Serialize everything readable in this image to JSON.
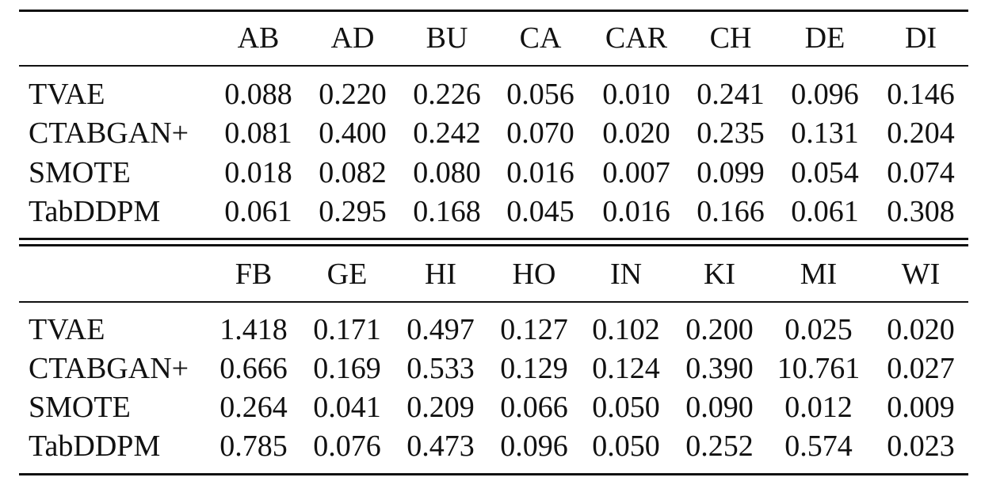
{
  "blocks": [
    {
      "columns": [
        "AB",
        "AD",
        "BU",
        "CA",
        "CAR",
        "CH",
        "DE",
        "DI"
      ],
      "rows": [
        {
          "label": "TVAE",
          "values": [
            "0.088",
            "0.220",
            "0.226",
            "0.056",
            "0.010",
            "0.241",
            "0.096",
            "0.146"
          ]
        },
        {
          "label": "CTABGAN+",
          "values": [
            "0.081",
            "0.400",
            "0.242",
            "0.070",
            "0.020",
            "0.235",
            "0.131",
            "0.204"
          ]
        },
        {
          "label": "SMOTE",
          "values": [
            "0.018",
            "0.082",
            "0.080",
            "0.016",
            "0.007",
            "0.099",
            "0.054",
            "0.074"
          ]
        },
        {
          "label": "TabDDPM",
          "values": [
            "0.061",
            "0.295",
            "0.168",
            "0.045",
            "0.016",
            "0.166",
            "0.061",
            "0.308"
          ]
        }
      ]
    },
    {
      "columns": [
        "FB",
        "GE",
        "HI",
        "HO",
        "IN",
        "KI",
        "MI",
        "WI"
      ],
      "rows": [
        {
          "label": "TVAE",
          "values": [
            "1.418",
            "0.171",
            "0.497",
            "0.127",
            "0.102",
            "0.200",
            "0.025",
            "0.020"
          ]
        },
        {
          "label": "CTABGAN+",
          "values": [
            "0.666",
            "0.169",
            "0.533",
            "0.129",
            "0.124",
            "0.390",
            "10.761",
            "0.027"
          ]
        },
        {
          "label": "SMOTE",
          "values": [
            "0.264",
            "0.041",
            "0.209",
            "0.066",
            "0.050",
            "0.090",
            "0.012",
            "0.009"
          ]
        },
        {
          "label": "TabDDPM",
          "values": [
            "0.785",
            "0.076",
            "0.473",
            "0.096",
            "0.050",
            "0.252",
            "0.574",
            "0.023"
          ]
        }
      ]
    }
  ]
}
